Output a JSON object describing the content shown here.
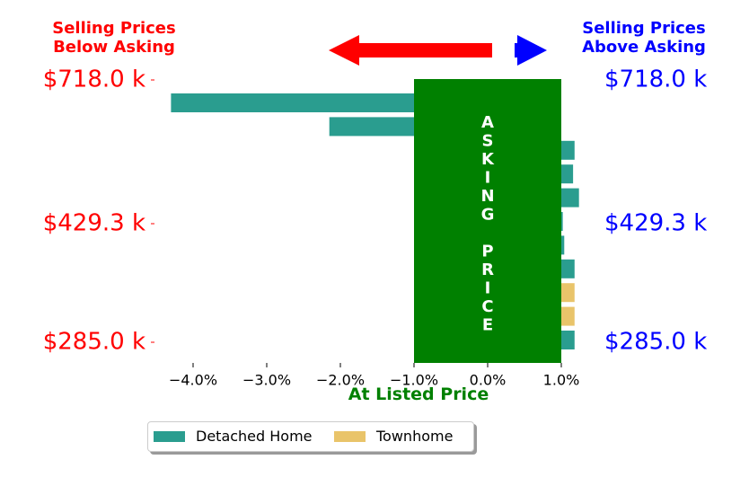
{
  "colors": {
    "below": "#ff0000",
    "above": "#0000ff",
    "asking": "#008000",
    "detached": "#2a9d8f",
    "townhome": "#e9c46a"
  },
  "headers": {
    "left_line1": "Selling Prices",
    "left_line2": "Below Asking",
    "right_line1": "Selling Prices",
    "right_line2": "Above Asking"
  },
  "asking_box": {
    "text1": "ASKING",
    "text2": "PRICE"
  },
  "chart_data": {
    "type": "bar",
    "orientation": "horizontal",
    "xlabel": "At Listed Price",
    "xlim": [
      -4.6,
      1.8
    ],
    "x_ticks": [
      {
        "value": -4.0,
        "label": "−4.0%"
      },
      {
        "value": -3.0,
        "label": "−3.0%"
      },
      {
        "value": -2.0,
        "label": "−2.0%"
      },
      {
        "value": -1.0,
        "label": "−1.0%"
      },
      {
        "value": 0.0,
        "label": "0.0%"
      },
      {
        "value": 1.0,
        "label": "1.0%"
      }
    ],
    "y_ticks": [
      {
        "row": 0,
        "label": "$718.0 k"
      },
      {
        "row": 6,
        "label": "$429.3 k"
      },
      {
        "row": 11,
        "label": "$285.0 k"
      }
    ],
    "asking_band": [
      -1.0,
      1.0
    ],
    "bars": [
      {
        "series": "Detached Home",
        "value": -4.3
      },
      {
        "series": "Detached Home",
        "value": -2.15
      },
      {
        "series": "Detached Home",
        "value": 1.18
      },
      {
        "series": "Detached Home",
        "value": 1.16
      },
      {
        "series": "Detached Home",
        "value": 1.24
      },
      {
        "series": "Detached Home",
        "value": 1.02
      },
      {
        "series": "Detached Home",
        "value": 1.04
      },
      {
        "series": "Detached Home",
        "value": 1.18
      },
      {
        "series": "Townhome",
        "value": 1.18
      },
      {
        "series": "Townhome",
        "value": 1.18
      },
      {
        "series": "Detached Home",
        "value": 1.18
      }
    ],
    "legend": [
      {
        "name": "Detached Home",
        "colorKey": "detached"
      },
      {
        "name": "Townhome",
        "colorKey": "townhome"
      }
    ]
  }
}
